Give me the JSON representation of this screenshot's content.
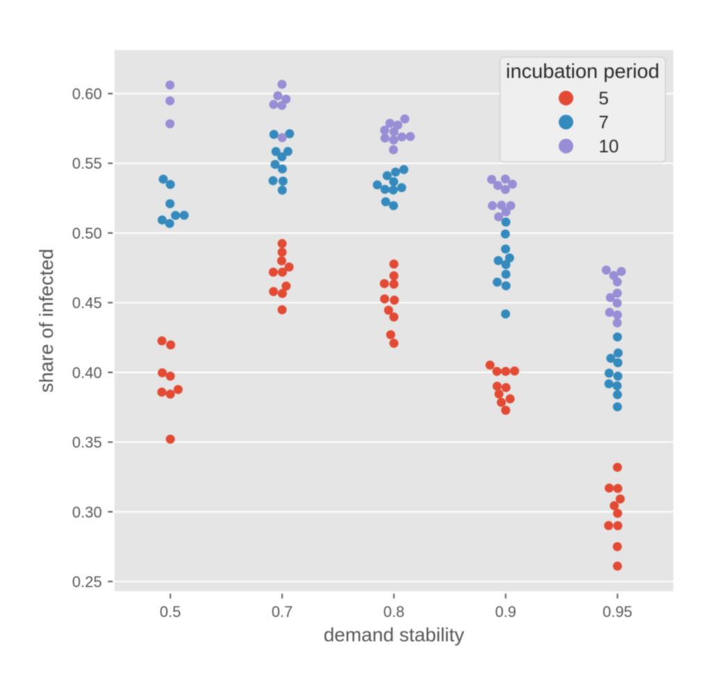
{
  "figure": {
    "background": "#ffffff",
    "panel_background": "#e5e5e5",
    "gridline_color": "#ffffff",
    "tick_color": "#666666",
    "label_color": "#555555",
    "legend_text_color": "#2a2a2a",
    "legend_background": "#efefef",
    "legend_border": "#d2d2d2"
  },
  "chart_data": {
    "type": "scatter",
    "variant": "jittered-strip-plot",
    "title": "",
    "xlabel": "demand stability",
    "ylabel": "share of infected",
    "categories": [
      "0.5",
      "0.7",
      "0.8",
      "0.9",
      "0.95"
    ],
    "yticks": [
      "0.25",
      "0.30",
      "0.35",
      "0.40",
      "0.45",
      "0.50",
      "0.55",
      "0.60"
    ],
    "ytick_values": [
      0.25,
      0.3,
      0.35,
      0.4,
      0.45,
      0.5,
      0.55,
      0.6
    ],
    "ylim": [
      0.243,
      0.6312
    ],
    "grid": "horizontal-only",
    "legend_position": "upper right",
    "legend": {
      "title": "incubation period",
      "entries": [
        {
          "label": "5",
          "color": "#E24A33"
        },
        {
          "label": "7",
          "color": "#348ABD"
        },
        {
          "label": "10",
          "color": "#988ED5"
        }
      ]
    },
    "series": [
      {
        "name": "5",
        "color": "#E24A33",
        "points": [
          {
            "x": "0.5",
            "jitter": -0.0753,
            "y": 0.4226
          },
          {
            "x": "0.5",
            "jitter": 0.003,
            "y": 0.4197
          },
          {
            "x": "0.5",
            "jitter": -0.0722,
            "y": 0.3997
          },
          {
            "x": "0.5",
            "jitter": 0.0,
            "y": 0.3973
          },
          {
            "x": "0.5",
            "jitter": -0.0765,
            "y": 0.3858
          },
          {
            "x": "0.5",
            "jitter": 0.0,
            "y": 0.3844
          },
          {
            "x": "0.5",
            "jitter": 0.0697,
            "y": 0.3877
          },
          {
            "x": "0.5",
            "jitter": 0.0,
            "y": 0.3521
          },
          {
            "x": "0.7",
            "jitter": 0.0,
            "y": 0.4924
          },
          {
            "x": "0.7",
            "jitter": 0.0,
            "y": 0.4862
          },
          {
            "x": "0.7",
            "jitter": -0.004,
            "y": 0.48
          },
          {
            "x": "0.7",
            "jitter": 0.0622,
            "y": 0.4756
          },
          {
            "x": "0.7",
            "jitter": -0.079,
            "y": 0.4719
          },
          {
            "x": "0.7",
            "jitter": 0.002,
            "y": 0.4719
          },
          {
            "x": "0.7",
            "jitter": 0.0361,
            "y": 0.4619
          },
          {
            "x": "0.7",
            "jitter": -0.0772,
            "y": 0.458
          },
          {
            "x": "0.7",
            "jitter": 0.002,
            "y": 0.4566
          },
          {
            "x": "0.7",
            "jitter": 0.0,
            "y": 0.4449
          },
          {
            "x": "0.8",
            "jitter": 0.0,
            "y": 0.4777
          },
          {
            "x": "0.8",
            "jitter": 0.0,
            "y": 0.4693
          },
          {
            "x": "0.8",
            "jitter": -0.0853,
            "y": 0.4637
          },
          {
            "x": "0.8",
            "jitter": 0.0,
            "y": 0.4633
          },
          {
            "x": "0.8",
            "jitter": -0.0834,
            "y": 0.4527
          },
          {
            "x": "0.8",
            "jitter": 0.004,
            "y": 0.4518
          },
          {
            "x": "0.8",
            "jitter": -0.0479,
            "y": 0.4446
          },
          {
            "x": "0.8",
            "jitter": 0.0,
            "y": 0.4397
          },
          {
            "x": "0.8",
            "jitter": -0.0286,
            "y": 0.427
          },
          {
            "x": "0.8",
            "jitter": 0.0,
            "y": 0.4209
          },
          {
            "x": "0.9",
            "jitter": -0.14,
            "y": 0.4052
          },
          {
            "x": "0.9",
            "jitter": -0.0784,
            "y": 0.4007
          },
          {
            "x": "0.9",
            "jitter": 0.0,
            "y": 0.4007
          },
          {
            "x": "0.9",
            "jitter": 0.0797,
            "y": 0.401
          },
          {
            "x": "0.9",
            "jitter": -0.0765,
            "y": 0.3901
          },
          {
            "x": "0.9",
            "jitter": 0.003,
            "y": 0.3891
          },
          {
            "x": "0.9",
            "jitter": -0.0597,
            "y": 0.3845
          },
          {
            "x": "0.9",
            "jitter": 0.0398,
            "y": 0.381
          },
          {
            "x": "0.9",
            "jitter": -0.0386,
            "y": 0.3785
          },
          {
            "x": "0.9",
            "jitter": 0.0,
            "y": 0.3728
          },
          {
            "x": "0.95",
            "jitter": 0.0,
            "y": 0.3319
          },
          {
            "x": "0.95",
            "jitter": -0.074,
            "y": 0.317
          },
          {
            "x": "0.95",
            "jitter": 0.003,
            "y": 0.3167
          },
          {
            "x": "0.95",
            "jitter": 0.0249,
            "y": 0.3092
          },
          {
            "x": "0.95",
            "jitter": -0.0286,
            "y": 0.3044
          },
          {
            "x": "0.95",
            "jitter": 0.001,
            "y": 0.2989
          },
          {
            "x": "0.95",
            "jitter": -0.079,
            "y": 0.2901
          },
          {
            "x": "0.95",
            "jitter": 0.003,
            "y": 0.29
          },
          {
            "x": "0.95",
            "jitter": -0.001,
            "y": 0.275
          },
          {
            "x": "0.95",
            "jitter": 0.0,
            "y": 0.261
          }
        ]
      },
      {
        "name": "7",
        "color": "#348ABD",
        "points": [
          {
            "x": "0.5",
            "jitter": -0.0635,
            "y": 0.5386
          },
          {
            "x": "0.5",
            "jitter": 0.0,
            "y": 0.5348
          },
          {
            "x": "0.5",
            "jitter": -0.003,
            "y": 0.521
          },
          {
            "x": "0.5",
            "jitter": -0.0734,
            "y": 0.5093
          },
          {
            "x": "0.5",
            "jitter": -0.006,
            "y": 0.5068
          },
          {
            "x": "0.5",
            "jitter": 0.046,
            "y": 0.5126
          },
          {
            "x": "0.5",
            "jitter": 0.1238,
            "y": 0.5127
          },
          {
            "x": "0.7",
            "jitter": -0.0734,
            "y": 0.5707
          },
          {
            "x": "0.7",
            "jitter": 0.0672,
            "y": 0.5712
          },
          {
            "x": "0.7",
            "jitter": -0.0554,
            "y": 0.5584
          },
          {
            "x": "0.7",
            "jitter": 0.0516,
            "y": 0.5585
          },
          {
            "x": "0.7",
            "jitter": -0.002,
            "y": 0.5546
          },
          {
            "x": "0.7",
            "jitter": -0.0628,
            "y": 0.5492
          },
          {
            "x": "0.7",
            "jitter": 0.002,
            "y": 0.5459
          },
          {
            "x": "0.7",
            "jitter": -0.0809,
            "y": 0.5375
          },
          {
            "x": "0.7",
            "jitter": 0.008,
            "y": 0.5372
          },
          {
            "x": "0.7",
            "jitter": 0.001,
            "y": 0.5307
          },
          {
            "x": "0.8",
            "jitter": 0.089,
            "y": 0.5455
          },
          {
            "x": "0.8",
            "jitter": 0.0149,
            "y": 0.5437
          },
          {
            "x": "0.8",
            "jitter": -0.0604,
            "y": 0.5411
          },
          {
            "x": "0.8",
            "jitter": -0.002,
            "y": 0.5368
          },
          {
            "x": "0.8",
            "jitter": -0.1487,
            "y": 0.5345
          },
          {
            "x": "0.8",
            "jitter": -0.0797,
            "y": 0.5313
          },
          {
            "x": "0.8",
            "jitter": -0.006,
            "y": 0.5308
          },
          {
            "x": "0.8",
            "jitter": 0.0697,
            "y": 0.5325
          },
          {
            "x": "0.8",
            "jitter": -0.0734,
            "y": 0.5224
          },
          {
            "x": "0.8",
            "jitter": -0.003,
            "y": 0.5196
          },
          {
            "x": "0.9",
            "jitter": 0.002,
            "y": 0.5078
          },
          {
            "x": "0.9",
            "jitter": -0.003,
            "y": 0.4993
          },
          {
            "x": "0.9",
            "jitter": -0.001,
            "y": 0.4885
          },
          {
            "x": "0.9",
            "jitter": 0.0348,
            "y": 0.4821
          },
          {
            "x": "0.9",
            "jitter": -0.066,
            "y": 0.4802
          },
          {
            "x": "0.9",
            "jitter": 0.002,
            "y": 0.4773
          },
          {
            "x": "0.9",
            "jitter": 0.002,
            "y": 0.4704
          },
          {
            "x": "0.9",
            "jitter": -0.0753,
            "y": 0.4647
          },
          {
            "x": "0.9",
            "jitter": 0.003,
            "y": 0.4621
          },
          {
            "x": "0.9",
            "jitter": -0.001,
            "y": 0.4419
          },
          {
            "x": "0.95",
            "jitter": 0.0,
            "y": 0.4254
          },
          {
            "x": "0.95",
            "jitter": 0.006,
            "y": 0.4139
          },
          {
            "x": "0.95",
            "jitter": -0.0591,
            "y": 0.4101
          },
          {
            "x": "0.95",
            "jitter": 0.004,
            "y": 0.4069
          },
          {
            "x": "0.95",
            "jitter": -0.0747,
            "y": 0.3994
          },
          {
            "x": "0.95",
            "jitter": 0.004,
            "y": 0.3973
          },
          {
            "x": "0.95",
            "jitter": -0.0765,
            "y": 0.3918
          },
          {
            "x": "0.95",
            "jitter": -0.003,
            "y": 0.3904
          },
          {
            "x": "0.95",
            "jitter": 0.0,
            "y": 0.384
          },
          {
            "x": "0.95",
            "jitter": 0.0,
            "y": 0.3753
          }
        ]
      },
      {
        "name": "10",
        "color": "#988ED5",
        "points": [
          {
            "x": "0.5",
            "jitter": -0.003,
            "y": 0.6061
          },
          {
            "x": "0.5",
            "jitter": -0.003,
            "y": 0.5948
          },
          {
            "x": "0.5",
            "jitter": -0.003,
            "y": 0.5783
          },
          {
            "x": "0.7",
            "jitter": -0.001,
            "y": 0.6066
          },
          {
            "x": "0.7",
            "jitter": -0.0386,
            "y": 0.5984
          },
          {
            "x": "0.7",
            "jitter": 0.0355,
            "y": 0.596
          },
          {
            "x": "0.7",
            "jitter": -0.0759,
            "y": 0.5922
          },
          {
            "x": "0.7",
            "jitter": -0.002,
            "y": 0.5915
          },
          {
            "x": "0.7",
            "jitter": 0.001,
            "y": 0.5684
          },
          {
            "x": "0.8",
            "jitter": 0.0977,
            "y": 0.5818
          },
          {
            "x": "0.8",
            "jitter": -0.0355,
            "y": 0.5787
          },
          {
            "x": "0.8",
            "jitter": 0.0348,
            "y": 0.5774
          },
          {
            "x": "0.8",
            "jitter": -0.0828,
            "y": 0.5737
          },
          {
            "x": "0.8",
            "jitter": 0.0,
            "y": 0.5726
          },
          {
            "x": "0.8",
            "jitter": 0.0709,
            "y": 0.5689
          },
          {
            "x": "0.8",
            "jitter": 0.1469,
            "y": 0.5692
          },
          {
            "x": "0.8",
            "jitter": -0.0797,
            "y": 0.5681
          },
          {
            "x": "0.8",
            "jitter": -0.002,
            "y": 0.5667
          },
          {
            "x": "0.8",
            "jitter": -0.004,
            "y": 0.5597
          },
          {
            "x": "0.9",
            "jitter": -0.1251,
            "y": 0.5384
          },
          {
            "x": "0.9",
            "jitter": -0.003,
            "y": 0.5387
          },
          {
            "x": "0.9",
            "jitter": -0.0703,
            "y": 0.5341
          },
          {
            "x": "0.9",
            "jitter": 0.0604,
            "y": 0.535
          },
          {
            "x": "0.9",
            "jitter": -0.003,
            "y": 0.5312
          },
          {
            "x": "0.9",
            "jitter": -0.1189,
            "y": 0.5196
          },
          {
            "x": "0.9",
            "jitter": -0.0373,
            "y": 0.5199
          },
          {
            "x": "0.9",
            "jitter": 0.0454,
            "y": 0.5196
          },
          {
            "x": "0.9",
            "jitter": 0.003,
            "y": 0.5152
          },
          {
            "x": "0.9",
            "jitter": -0.0628,
            "y": 0.5116
          },
          {
            "x": "0.95",
            "jitter": -0.0996,
            "y": 0.4734
          },
          {
            "x": "0.95",
            "jitter": 0.0348,
            "y": 0.4724
          },
          {
            "x": "0.95",
            "jitter": -0.033,
            "y": 0.4695
          },
          {
            "x": "0.95",
            "jitter": -0.001,
            "y": 0.4649
          },
          {
            "x": "0.95",
            "jitter": -0.001,
            "y": 0.4568
          },
          {
            "x": "0.95",
            "jitter": -0.0635,
            "y": 0.4536
          },
          {
            "x": "0.95",
            "jitter": -0.002,
            "y": 0.4497
          },
          {
            "x": "0.95",
            "jitter": -0.0703,
            "y": 0.443
          },
          {
            "x": "0.95",
            "jitter": 0.0,
            "y": 0.4412
          },
          {
            "x": "0.95",
            "jitter": -0.002,
            "y": 0.4355
          }
        ]
      }
    ]
  }
}
